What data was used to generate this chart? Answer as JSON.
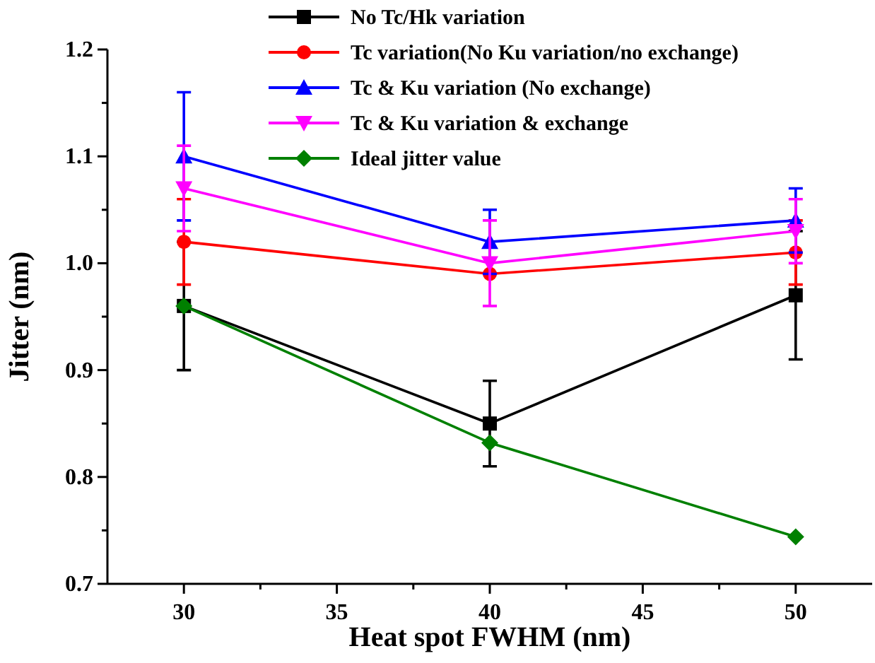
{
  "chart_data": {
    "type": "line",
    "xlabel": "Heat spot FWHM (nm)",
    "ylabel": "Jitter (nm)",
    "x": [
      30,
      40,
      50
    ],
    "xlim": [
      27.5,
      52.5
    ],
    "xticks": [
      30,
      {
        "value": 32.5,
        "label": null
      },
      35,
      {
        "value": 37.5,
        "label": null
      },
      40,
      {
        "value": 42.5,
        "label": null
      },
      45,
      {
        "value": 47.5,
        "label": null
      },
      50
    ],
    "ylim": [
      0.7,
      1.2
    ],
    "yticks": [
      0.7,
      {
        "value": 0.75,
        "label": null
      },
      0.8,
      {
        "value": 0.85,
        "label": null
      },
      0.9,
      {
        "value": 0.95,
        "label": null
      },
      {
        "value": 1,
        "label": "1.0"
      },
      {
        "value": 1.05,
        "label": null
      },
      1.1,
      {
        "value": 1.15,
        "label": null
      },
      1.2
    ],
    "grid": false,
    "legend": "top",
    "line_style": "solid",
    "series": [
      {
        "name": "No Tc/Hk variation",
        "color": "#000000",
        "marker": "square",
        "values": [
          0.96,
          0.85,
          0.97
        ],
        "errors": [
          0.06,
          0.04,
          0.06
        ]
      },
      {
        "name": "Tc variation(No Ku variation/no exchange)",
        "color": "#ff0000",
        "marker": "circle",
        "values": [
          1.02,
          0.99,
          1.01
        ],
        "errors": [
          0.04,
          null,
          0.03
        ]
      },
      {
        "name": "Tc & Ku variation (No exchange)",
        "color": "#0000ff",
        "marker": "triangle",
        "values": [
          1.1,
          1.02,
          1.04
        ],
        "errors": [
          0.06,
          0.03,
          0.03
        ]
      },
      {
        "name": "Tc & Ku variation & exchange",
        "color": "#ff00ff",
        "marker": "triangle-down",
        "values": [
          1.07,
          1.0,
          1.03
        ],
        "errors": [
          0.04,
          0.04,
          0.03
        ]
      },
      {
        "name": "Ideal jitter value",
        "color": "#008000",
        "marker": "diamond",
        "values": [
          0.96,
          0.832,
          0.744
        ]
      }
    ]
  }
}
